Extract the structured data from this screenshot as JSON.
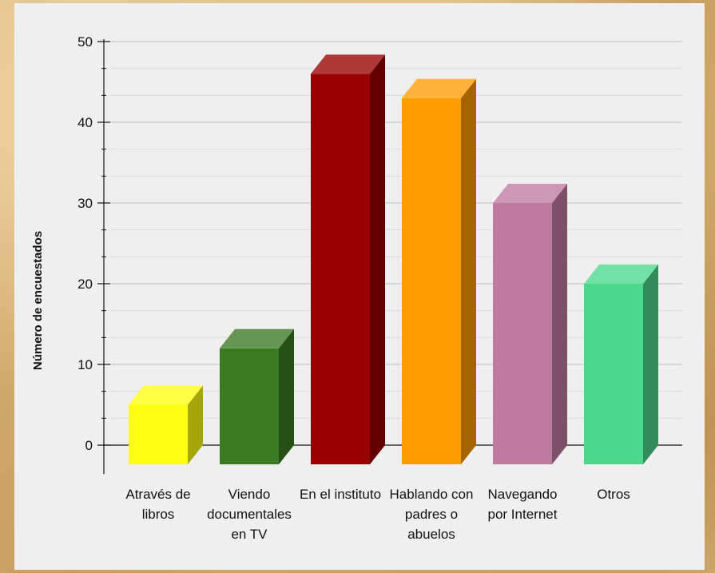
{
  "chart_data": {
    "type": "bar",
    "title": "",
    "xlabel": "",
    "ylabel": "Número de encuestados",
    "ylim": [
      0,
      50
    ],
    "yticks": [
      0,
      10,
      20,
      30,
      40,
      50
    ],
    "grid": true,
    "categories": [
      [
        "Através de",
        "libros"
      ],
      [
        "Viendo",
        "documentales",
        "en TV"
      ],
      [
        "En el instituto"
      ],
      [
        "Hablando con",
        "padres o",
        "abuelos"
      ],
      [
        "Navegando",
        "por Internet"
      ],
      [
        "Otros"
      ]
    ],
    "values": [
      5,
      12,
      46,
      43,
      30,
      20
    ],
    "colors": [
      "#ffff11",
      "#3a7a22",
      "#990000",
      "#ff9c00",
      "#c07aa0",
      "#4cd88c"
    ]
  }
}
